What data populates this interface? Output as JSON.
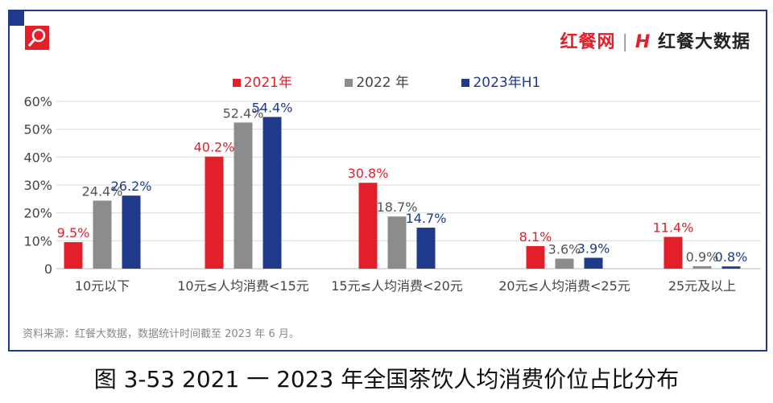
{
  "brand": {
    "left": "红餐网",
    "right": "红餐大数据"
  },
  "chart_data": {
    "type": "bar",
    "categories": [
      "10元以下",
      "10元≤人均消费<15元",
      "15元≤人均消费<20元",
      "20元≤人均消费<25元",
      "25元及以上"
    ],
    "series": [
      {
        "name": "2021年",
        "color": "#e3202a",
        "values": [
          9.5,
          40.2,
          30.8,
          8.1,
          11.4
        ]
      },
      {
        "name": "2022 年",
        "color": "#8c8c8c",
        "values": [
          24.4,
          52.4,
          18.7,
          3.6,
          0.9
        ]
      },
      {
        "name": "2023年H1",
        "color": "#1f3a8a",
        "values": [
          26.2,
          54.4,
          14.7,
          3.9,
          0.8
        ]
      }
    ],
    "yticks": [
      "0",
      "10%",
      "20%",
      "30%",
      "40%",
      "50%",
      "60%"
    ],
    "ylim": [
      0,
      60
    ],
    "grid": true,
    "legend": "top",
    "unit": "%"
  },
  "source": "资料来源：红餐大数据，数据统计时间截至 2023 年 6 月。",
  "caption": "图 3-53    2021 一 2023 年全国茶饮人均消费价位占比分布"
}
